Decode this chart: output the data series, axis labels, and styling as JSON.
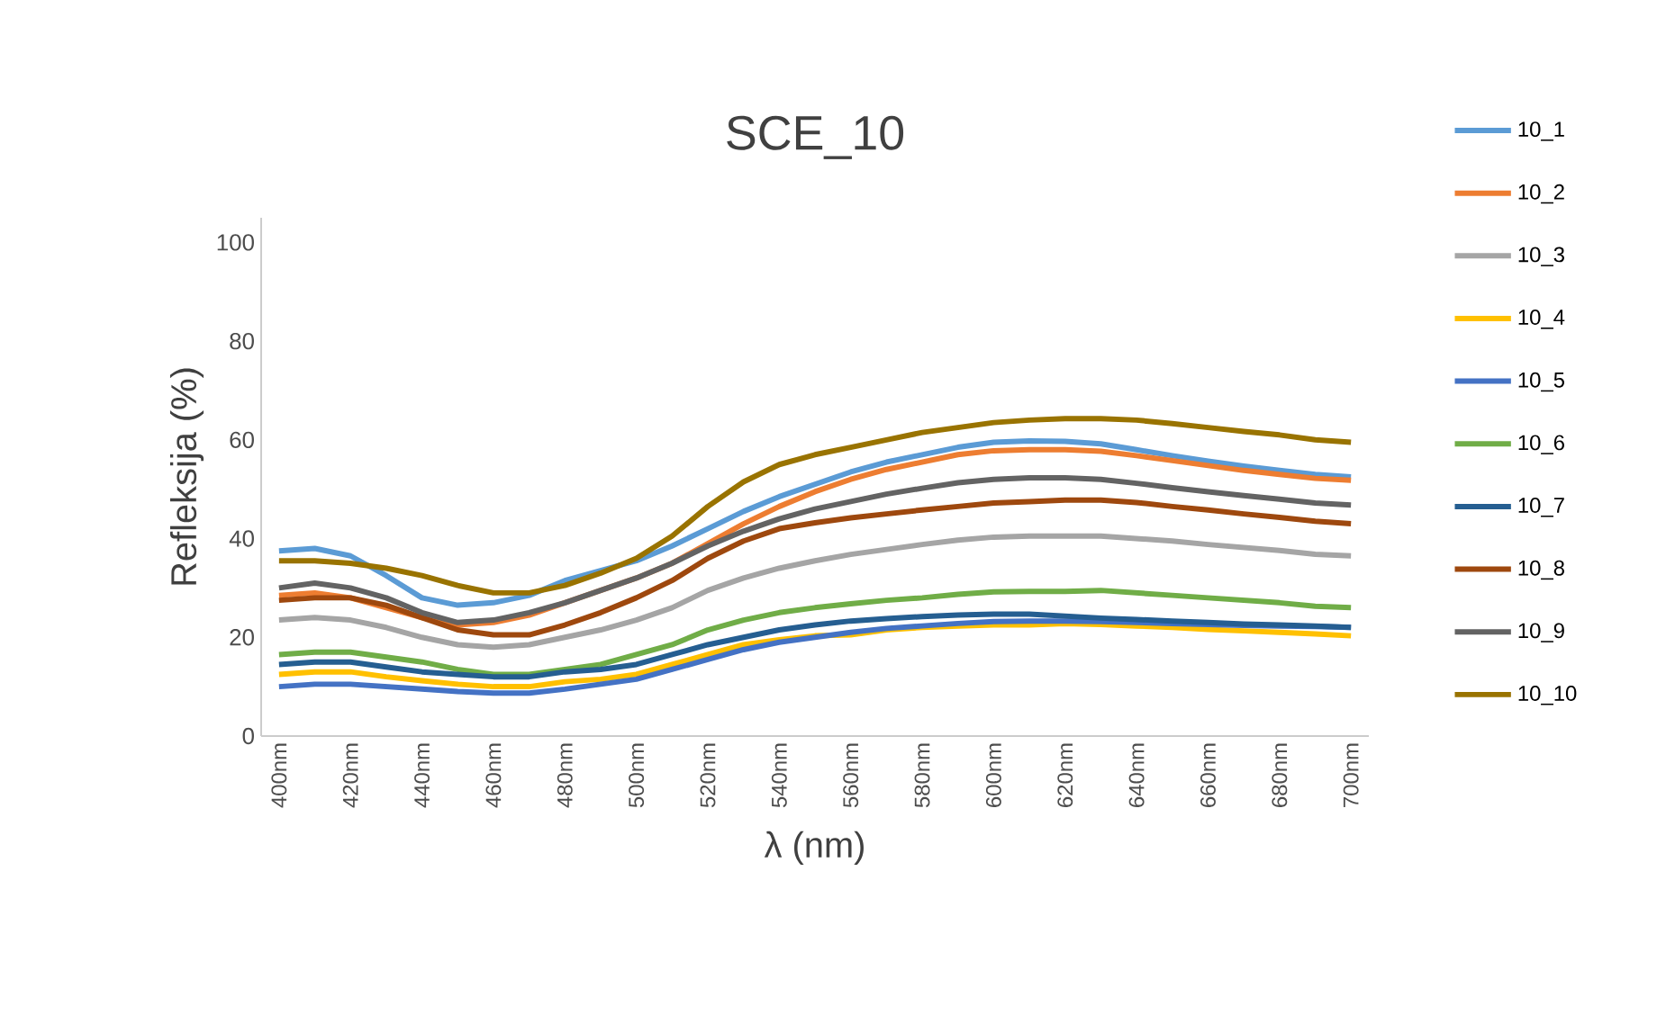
{
  "chart_data": {
    "type": "line",
    "title": "SCE_10",
    "xlabel": "λ (nm)",
    "ylabel": "Refleksija (%)",
    "categories": [
      "400nm",
      null,
      "420nm",
      null,
      "440nm",
      null,
      "460nm",
      null,
      "480nm",
      null,
      "500nm",
      null,
      "520nm",
      null,
      "540nm",
      null,
      "560nm",
      null,
      "580nm",
      null,
      "600nm",
      null,
      "620nm",
      null,
      "640nm",
      null,
      "660nm",
      null,
      "680nm",
      null,
      "700nm"
    ],
    "ylim": [
      0,
      105
    ],
    "yticks": [
      0,
      20,
      40,
      60,
      80,
      100
    ],
    "grid": false,
    "legend": "right",
    "marker": "none",
    "line_style": "solid",
    "series": [
      {
        "name": "10_1",
        "color": "#5b9bd5",
        "values": [
          37.5,
          38,
          36.5,
          32.5,
          28,
          26.5,
          27,
          28.5,
          31.5,
          33.5,
          35.5,
          38.5,
          42,
          45.5,
          48.5,
          51,
          53.5,
          55.5,
          57,
          58.5,
          59.5,
          59.8,
          59.7,
          59.2,
          58,
          56.8,
          55.7,
          54.7,
          53.8,
          53,
          52.5
        ]
      },
      {
        "name": "10_2",
        "color": "#ed7d31",
        "values": [
          28.5,
          29,
          28,
          26,
          24,
          22.5,
          23,
          24.5,
          27,
          29.5,
          32,
          35,
          39,
          43,
          46.5,
          49.5,
          52,
          54,
          55.5,
          57,
          57.8,
          58,
          58,
          57.7,
          56.8,
          55.8,
          54.8,
          53.8,
          53,
          52.2,
          51.8
        ]
      },
      {
        "name": "10_3",
        "color": "#a5a5a5",
        "values": [
          23.5,
          24,
          23.5,
          22,
          20,
          18.5,
          18,
          18.5,
          20,
          21.5,
          23.5,
          26,
          29.5,
          32,
          34,
          35.5,
          36.8,
          37.8,
          38.8,
          39.7,
          40.3,
          40.5,
          40.5,
          40.5,
          40,
          39.5,
          38.8,
          38.2,
          37.6,
          36.8,
          36.5
        ]
      },
      {
        "name": "10_4",
        "color": "#ffc000",
        "values": [
          12.5,
          13,
          13,
          12,
          11.2,
          10.5,
          10,
          10,
          11,
          11.5,
          12.5,
          14.5,
          16.5,
          18.5,
          19.5,
          20.3,
          20.5,
          21.5,
          22,
          22.3,
          22.5,
          22.5,
          22.8,
          22.6,
          22.3,
          22,
          21.6,
          21.3,
          21,
          20.7,
          20.3
        ]
      },
      {
        "name": "10_5",
        "color": "#4472c4",
        "values": [
          10,
          10.5,
          10.5,
          10,
          9.5,
          9,
          8.7,
          8.7,
          9.5,
          10.5,
          11.5,
          13.5,
          15.5,
          17.5,
          19,
          20,
          21,
          21.8,
          22.3,
          22.8,
          23.2,
          23.3,
          23.3,
          23.2,
          23,
          22.8,
          22.6,
          22.4,
          22.3,
          22.2,
          22
        ]
      },
      {
        "name": "10_6",
        "color": "#70ad47",
        "values": [
          16.5,
          17,
          17,
          16,
          15,
          13.5,
          12.5,
          12.5,
          13.5,
          14.5,
          16.5,
          18.5,
          21.5,
          23.5,
          25,
          26,
          26.8,
          27.5,
          28,
          28.7,
          29.2,
          29.3,
          29.3,
          29.5,
          29,
          28.5,
          28,
          27.5,
          27,
          26.3,
          26
        ]
      },
      {
        "name": "10_7",
        "color": "#255e91",
        "values": [
          14.5,
          15,
          15,
          14,
          13,
          12.5,
          12,
          12,
          13,
          13.5,
          14.5,
          16.5,
          18.5,
          20,
          21.5,
          22.5,
          23.3,
          23.8,
          24.2,
          24.5,
          24.7,
          24.7,
          24.3,
          23.9,
          23.6,
          23.3,
          23,
          22.7,
          22.5,
          22.3,
          22
        ]
      },
      {
        "name": "10_8",
        "color": "#9e480e",
        "values": [
          27.5,
          28,
          28,
          26.5,
          24,
          21.5,
          20.5,
          20.5,
          22.5,
          25,
          28,
          31.5,
          36,
          39.5,
          42,
          43.2,
          44.2,
          45,
          45.8,
          46.5,
          47.2,
          47.5,
          47.8,
          47.8,
          47.3,
          46.5,
          45.8,
          45,
          44.3,
          43.5,
          43
        ]
      },
      {
        "name": "10_9",
        "color": "#636363",
        "values": [
          30,
          31,
          30,
          28,
          25,
          23,
          23.5,
          25,
          27,
          29.5,
          32,
          35,
          38.5,
          41.5,
          44,
          46,
          47.5,
          49,
          50.2,
          51.3,
          52,
          52.3,
          52.3,
          52,
          51.2,
          50.3,
          49.5,
          48.7,
          48,
          47.2,
          46.8
        ]
      },
      {
        "name": "10_10",
        "color": "#997300",
        "values": [
          35.5,
          35.5,
          35,
          34,
          32.5,
          30.5,
          29,
          29,
          30.5,
          33,
          36,
          40.5,
          46.5,
          51.5,
          55,
          57,
          58.5,
          60,
          61.5,
          62.5,
          63.5,
          64,
          64.3,
          64.3,
          64,
          63.3,
          62.5,
          61.7,
          61,
          60,
          59.5
        ]
      }
    ]
  }
}
